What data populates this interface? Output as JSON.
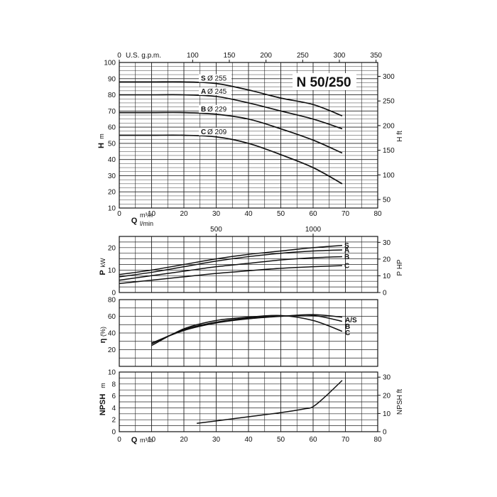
{
  "model_label": "N 50/250",
  "chart_data": [
    {
      "id": "head",
      "type": "line",
      "xlabel": "Q",
      "xunit": "m³/h",
      "xunit2": "l/min",
      "ylabel": "H",
      "yunit": "m",
      "y2label": "H ft",
      "xlim": [
        0,
        80
      ],
      "ylim": [
        10,
        100
      ],
      "x_ticks": [
        0,
        10,
        20,
        30,
        40,
        50,
        60,
        70,
        80
      ],
      "y_ticks": [
        10,
        20,
        30,
        40,
        50,
        60,
        70,
        80,
        90,
        100
      ],
      "top_axis_label": "U.S. g.p.m.",
      "top_ticks": [
        0,
        100,
        150,
        200,
        250,
        300,
        350
      ],
      "right_ticks": [
        50,
        100,
        150,
        200,
        250,
        300
      ],
      "lim_xunit2_ticks": [
        500,
        1000
      ],
      "series": [
        {
          "name": "S",
          "diameter_label": "Ø 255",
          "x": [
            0,
            10,
            20,
            30,
            40,
            50,
            60,
            69
          ],
          "y": [
            88,
            88,
            88,
            87,
            83,
            78,
            74,
            67
          ]
        },
        {
          "name": "A",
          "diameter_label": "Ø 245",
          "x": [
            0,
            10,
            20,
            30,
            40,
            50,
            60,
            69
          ],
          "y": [
            80,
            80,
            80,
            79,
            75,
            70,
            65,
            59
          ]
        },
        {
          "name": "B",
          "diameter_label": "Ø 229",
          "x": [
            0,
            10,
            20,
            30,
            40,
            50,
            60,
            69
          ],
          "y": [
            69,
            69,
            69,
            68,
            65,
            59,
            52,
            44
          ]
        },
        {
          "name": "C",
          "diameter_label": "Ø 209",
          "x": [
            0,
            10,
            20,
            30,
            40,
            50,
            60,
            69
          ],
          "y": [
            55,
            55,
            55,
            54,
            50,
            43,
            35,
            25
          ]
        }
      ]
    },
    {
      "id": "power",
      "type": "line",
      "ylabel": "P",
      "yunit": "kW",
      "y2label": "P HP",
      "xlim": [
        0,
        80
      ],
      "ylim": [
        0,
        25
      ],
      "y_ticks": [
        0,
        10,
        20
      ],
      "right_ticks": [
        0,
        10,
        20,
        30
      ],
      "top_ticks": [
        500,
        1000
      ],
      "series": [
        {
          "name": "S",
          "x": [
            0,
            10,
            20,
            30,
            40,
            50,
            60,
            69
          ],
          "y": [
            8,
            10,
            12.5,
            15,
            17,
            18.5,
            20,
            21
          ]
        },
        {
          "name": "A",
          "x": [
            0,
            10,
            20,
            30,
            40,
            50,
            60,
            69
          ],
          "y": [
            7,
            9,
            11.5,
            14,
            16,
            17.5,
            18.5,
            19
          ]
        },
        {
          "name": "B",
          "x": [
            0,
            10,
            20,
            30,
            40,
            50,
            60,
            69
          ],
          "y": [
            5.5,
            7.5,
            9.5,
            11.5,
            13,
            14.5,
            15.5,
            16
          ]
        },
        {
          "name": "C",
          "x": [
            0,
            10,
            20,
            30,
            40,
            50,
            60,
            69
          ],
          "y": [
            4,
            5.5,
            7,
            8.5,
            9.7,
            10.8,
            11.5,
            12
          ]
        }
      ]
    },
    {
      "id": "efficiency",
      "type": "line",
      "ylabel": "η",
      "yunit": "(%)",
      "xlim": [
        0,
        80
      ],
      "ylim": [
        0,
        80
      ],
      "y_ticks": [
        20,
        40,
        60,
        80
      ],
      "series": [
        {
          "name": "A/S",
          "x": [
            10,
            20,
            30,
            40,
            50,
            60,
            69
          ],
          "y": [
            28,
            43,
            52,
            57,
            60,
            62,
            59
          ]
        },
        {
          "name": "B",
          "x": [
            10,
            20,
            30,
            40,
            50,
            60,
            69
          ],
          "y": [
            27,
            44,
            53,
            58,
            60,
            61,
            54
          ]
        },
        {
          "name": "C",
          "x": [
            10,
            20,
            30,
            40,
            50,
            60,
            69
          ],
          "y": [
            25,
            45,
            55,
            59,
            61,
            55,
            42
          ]
        }
      ]
    },
    {
      "id": "npsh",
      "type": "line",
      "xlabel": "Q",
      "xunit": "m³/h",
      "ylabel": "NPSH",
      "yunit": "m",
      "y2label": "NPSH ft",
      "xlim": [
        0,
        80
      ],
      "ylim": [
        0,
        10
      ],
      "x_ticks": [
        0,
        10,
        20,
        30,
        40,
        50,
        60,
        70,
        80
      ],
      "y_ticks": [
        0,
        2,
        4,
        6,
        8,
        10
      ],
      "right_ticks": [
        0,
        10,
        20,
        30
      ],
      "series": [
        {
          "name": "",
          "x": [
            24,
            30,
            40,
            50,
            57,
            60,
            64,
            69
          ],
          "y": [
            1.4,
            1.8,
            2.5,
            3.2,
            3.8,
            4.2,
            6,
            8.6
          ]
        }
      ]
    }
  ]
}
